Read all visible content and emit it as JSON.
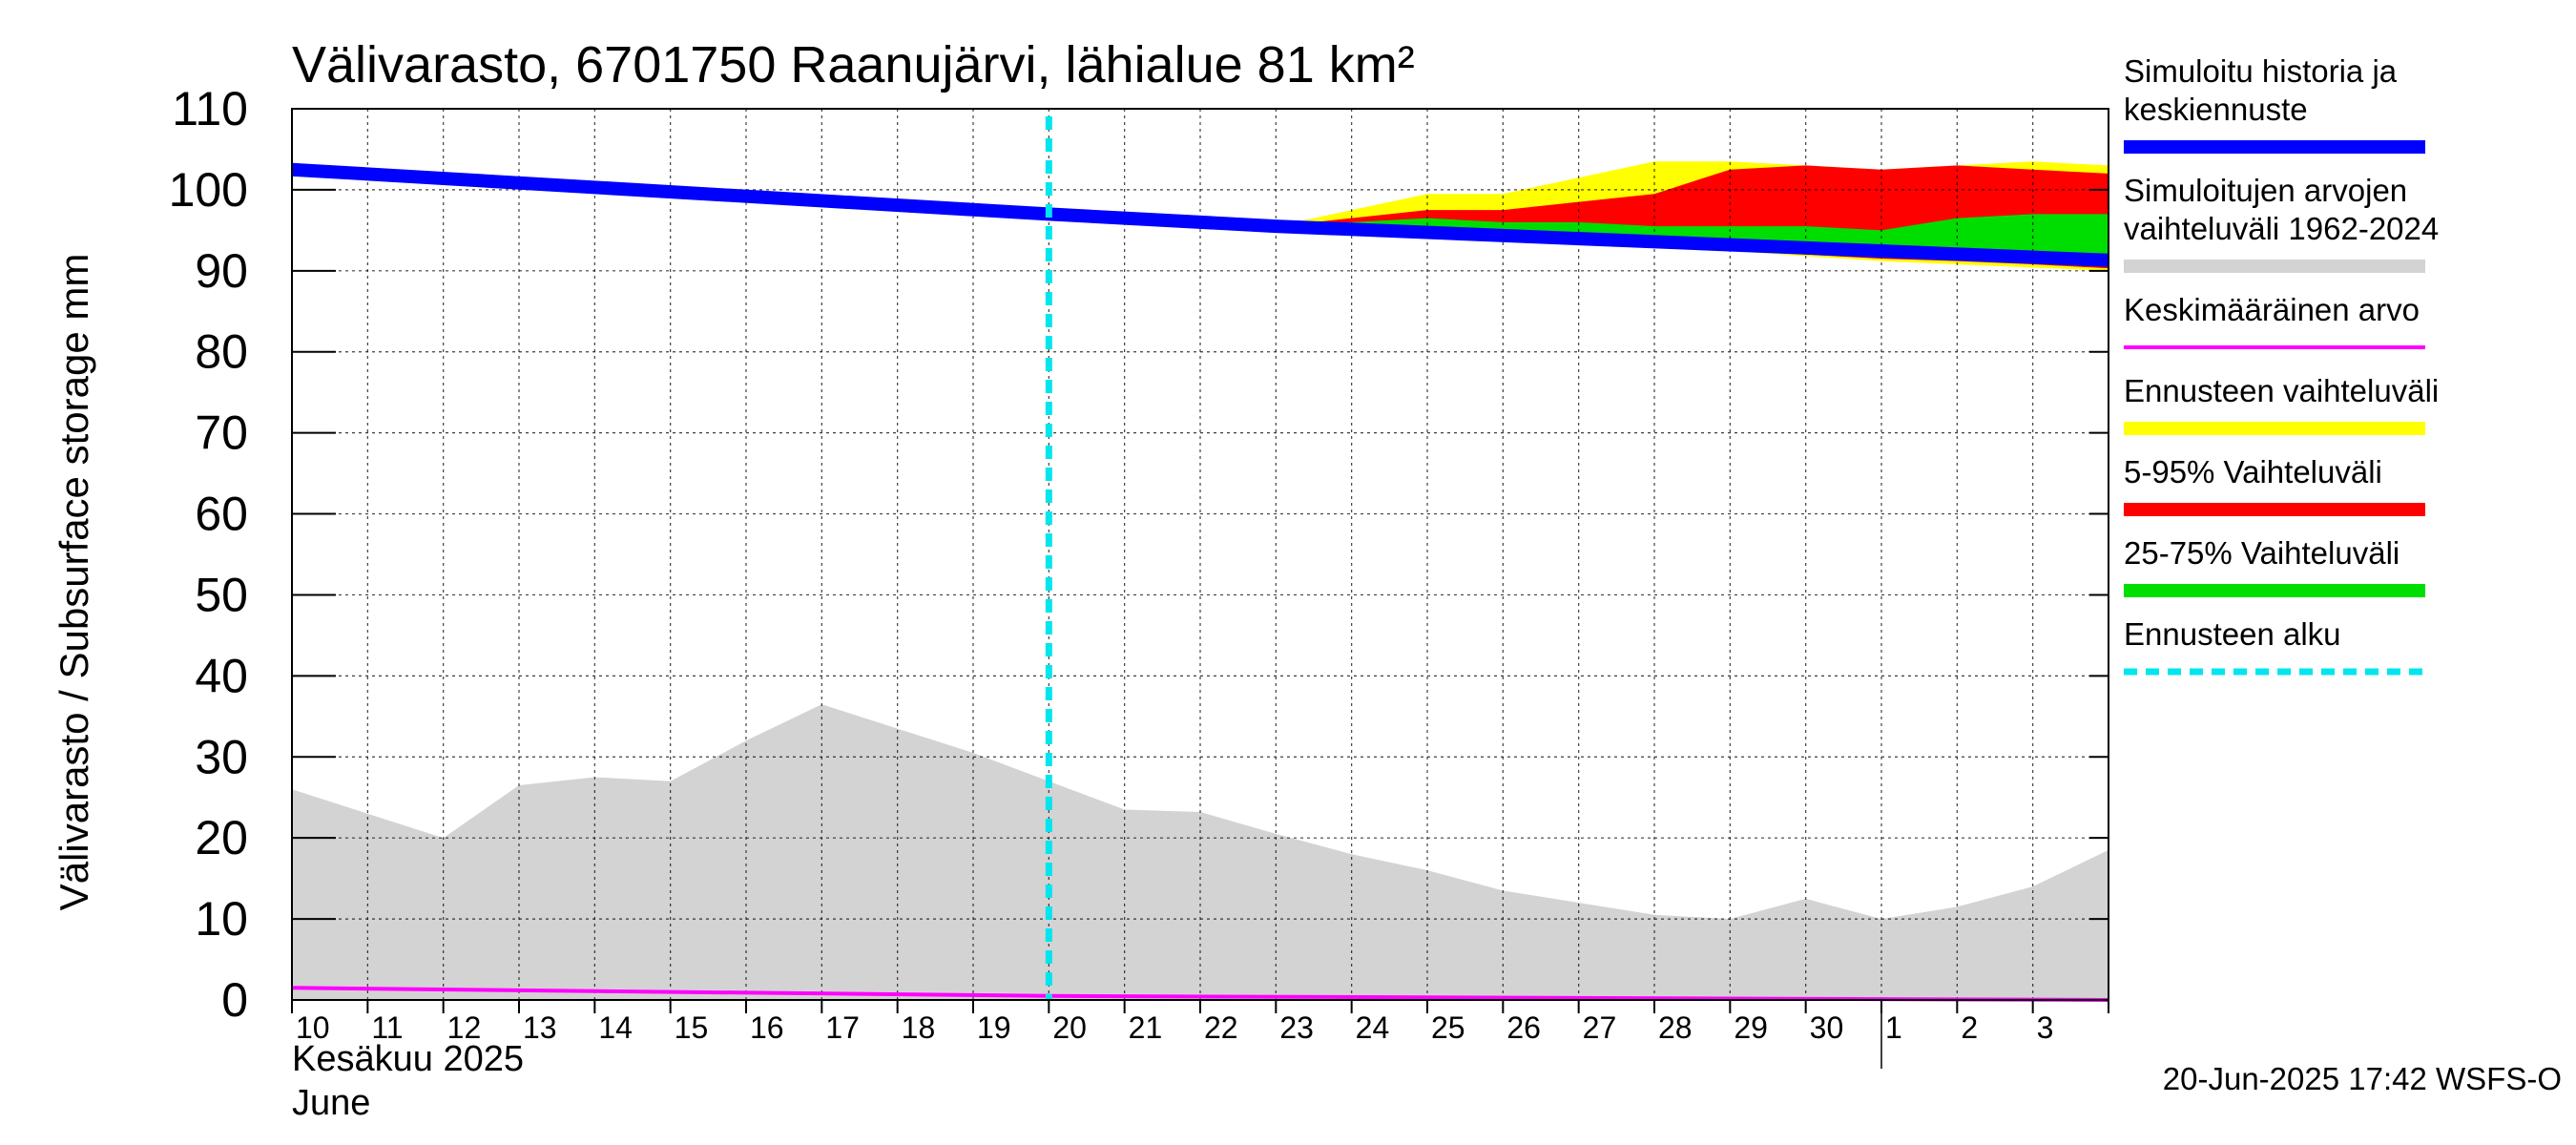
{
  "chart_data": {
    "type": "area",
    "title": "Välivarasto, 6701750 Raanujärvi, lähialue 81 km²",
    "ylabel": "Välivarasto / Subsurface storage  mm",
    "ylim": [
      0,
      110
    ],
    "yticks": [
      0,
      10,
      20,
      30,
      40,
      50,
      60,
      70,
      80,
      90,
      100,
      110
    ],
    "x_start_day": 10,
    "x_end_day": 34,
    "xtick_labels": [
      "10",
      "11",
      "12",
      "13",
      "14",
      "15",
      "16",
      "17",
      "18",
      "19",
      "20",
      "21",
      "22",
      "23",
      "24",
      "25",
      "26",
      "27",
      "28",
      "29",
      "30",
      "1",
      "2",
      "3"
    ],
    "month_label_fi": "Kesäkuu  2025",
    "month_label_en": "June",
    "month_boundary_day": 31,
    "forecast_start_day": 20,
    "history": {
      "x": [
        10,
        20,
        23,
        34
      ],
      "values": [
        102.5,
        97.0,
        95.5,
        91.3
      ]
    },
    "range_1962_2024": {
      "x": [
        10,
        11,
        12,
        13,
        14,
        15,
        16,
        17,
        18,
        19,
        20,
        21,
        22,
        23,
        24,
        25,
        26,
        27,
        28,
        29,
        30,
        31,
        32,
        33,
        34
      ],
      "upper": [
        26,
        23,
        20,
        26.5,
        27.5,
        27,
        32,
        36.5,
        33.5,
        30.5,
        27,
        23.5,
        23.2,
        20.5,
        18,
        16,
        13.5,
        12,
        10.5,
        10,
        12.5,
        10,
        11.5,
        14,
        18.5
      ],
      "lower": [
        0,
        0,
        0,
        0,
        0,
        0,
        0,
        0,
        0,
        0,
        0,
        0,
        0,
        0,
        0,
        0,
        0,
        0,
        0,
        0,
        0,
        0,
        0,
        0,
        0
      ]
    },
    "mean": {
      "x": [
        10,
        20,
        34
      ],
      "values": [
        1.5,
        0.5,
        0
      ]
    },
    "forecast_range": {
      "x": [
        23,
        24,
        25,
        26,
        27,
        28,
        29,
        30,
        31,
        32,
        33,
        34
      ],
      "upper": [
        95.5,
        97.5,
        99.5,
        99.5,
        101.5,
        103.5,
        103.5,
        103,
        102.5,
        103,
        103.5,
        103
      ],
      "lower": [
        95.5,
        95,
        94.5,
        94,
        93.5,
        93,
        92.5,
        91.8,
        91.2,
        90.8,
        90.4,
        90
      ]
    },
    "range_5_95": {
      "x": [
        23,
        24,
        25,
        26,
        27,
        28,
        29,
        30,
        31,
        32,
        33,
        34
      ],
      "upper": [
        95.5,
        96.5,
        97.5,
        97.5,
        98.5,
        99.5,
        102.5,
        103,
        102.5,
        103,
        102.5,
        102
      ],
      "lower": [
        95.5,
        95,
        94.5,
        94,
        93.5,
        93,
        92.5,
        92,
        91.5,
        91.2,
        90.8,
        90.3
      ]
    },
    "range_25_75": {
      "x": [
        23,
        24,
        25,
        26,
        27,
        28,
        29,
        30,
        31,
        32,
        33,
        34
      ],
      "upper": [
        95.5,
        96,
        96.5,
        96,
        96,
        95.5,
        95.5,
        95.5,
        95,
        96.5,
        97,
        97
      ],
      "lower": [
        95.5,
        95,
        94.5,
        94,
        93.5,
        93,
        92.8,
        92.5,
        92.3,
        92,
        91.8,
        91.5
      ]
    },
    "legend": [
      {
        "label": "Simuloitu historia ja keskiennuste",
        "color": "#0000ff",
        "style": "solid-thick"
      },
      {
        "label": "Simuloitujen arvojen vaihteluväli 1962-2024",
        "color": "#d3d3d3",
        "style": "solid-thick"
      },
      {
        "label": "Keskimääräinen arvo",
        "color": "#ff00ff",
        "style": "solid-thin"
      },
      {
        "label": "Ennusteen vaihteluväli",
        "color": "#ffff00",
        "style": "solid-thick"
      },
      {
        "label": "5-95% Vaihteluväli",
        "color": "#ff0000",
        "style": "solid-thick"
      },
      {
        "label": "25-75% Vaihteluväli",
        "color": "#00dd00",
        "style": "solid-thick"
      },
      {
        "label": "Ennusteen alku",
        "color": "#00e5ee",
        "style": "dashed"
      }
    ],
    "legend_lines": [
      [
        "Simuloitu historia ja",
        "keskiennuste"
      ],
      [
        "Simuloitujen arvojen",
        "vaihteluväli 1962-2024"
      ],
      [
        "Keskimääräinen arvo"
      ],
      [
        "Ennusteen vaihteluväli"
      ],
      [
        "5-95% Vaihteluväli"
      ],
      [
        "25-75% Vaihteluväli"
      ],
      [
        "Ennusteen alku"
      ]
    ],
    "timestamp": "20-Jun-2025 17:42 WSFS-O"
  },
  "colors": {
    "history": "#0000ff",
    "grey_range": "#d3d3d3",
    "mean": "#ff00ff",
    "forecast": "#ffff00",
    "p5_95": "#ff0000",
    "p25_75": "#00dd00",
    "forecast_start": "#00e5ee"
  }
}
